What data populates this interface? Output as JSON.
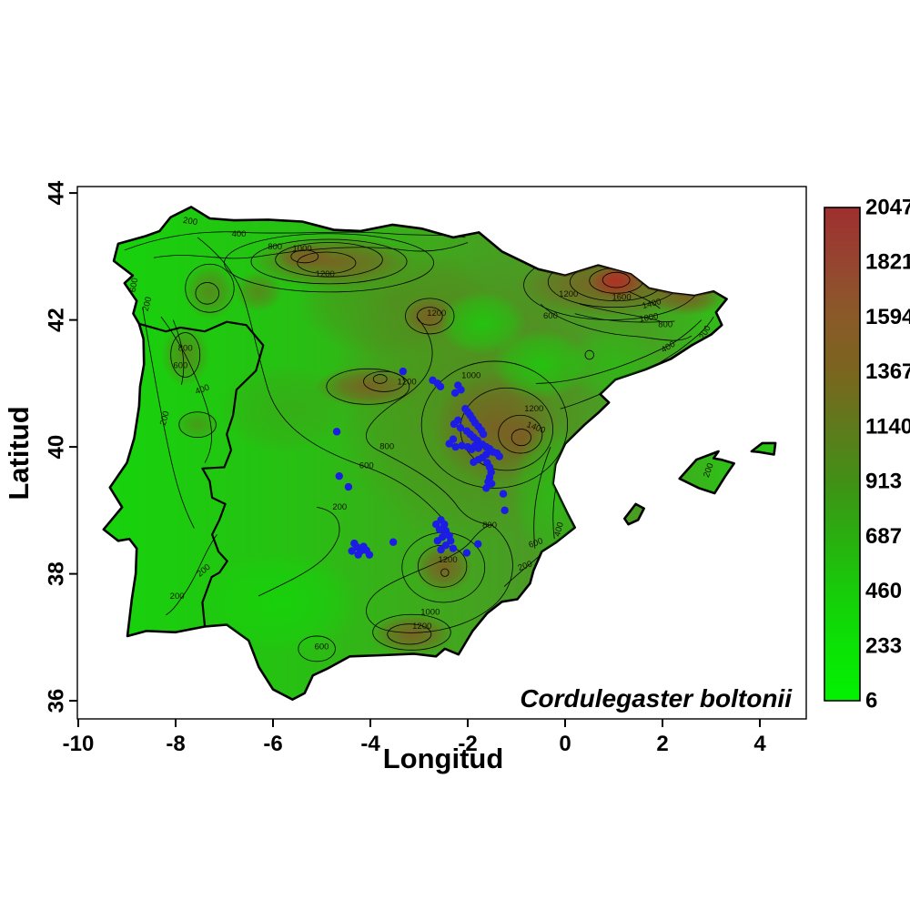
{
  "chart_data": {
    "type": "contour-map-with-points",
    "region": "Iberian Peninsula",
    "species": "Cordulegaster boltonii",
    "xlabel": "Longitud",
    "ylabel": "Latitud",
    "xlim": [
      -10,
      5
    ],
    "ylim": [
      35.7,
      44.1
    ],
    "x_axis": {
      "ticks": [
        -10,
        -8,
        -6,
        -4,
        -2,
        0,
        2,
        4
      ]
    },
    "y_axis": {
      "ticks": [
        36,
        38,
        40,
        42,
        44
      ]
    },
    "colorbar": {
      "values": [
        2047,
        1821,
        1594,
        1367,
        1140,
        913,
        687,
        460,
        233,
        6
      ],
      "gradient_top_to_bottom": [
        "#9e2f2f",
        "#964530",
        "#8a5a28",
        "#7a651f",
        "#5f7a1c",
        "#419016",
        "#2aae10",
        "#17cc09",
        "#0be205",
        "#02f202"
      ]
    },
    "colors": {
      "point": "#1c1ce6",
      "land_low": "#16d30b",
      "land_mid": "#4b9a24",
      "highland_brown": "#7d5c24",
      "peak_red": "#ac3226",
      "coast_line": "#000000"
    },
    "contour_labels": [
      {
        "t": "200",
        "lon": -7.7,
        "lat": 43.55,
        "r": 10
      },
      {
        "t": "400",
        "lon": -6.7,
        "lat": 43.35,
        "r": 0
      },
      {
        "t": "800",
        "lon": -5.96,
        "lat": 43.15,
        "r": 0
      },
      {
        "t": "1000",
        "lon": -5.4,
        "lat": 43.12,
        "r": 0
      },
      {
        "t": "1200",
        "lon": -4.93,
        "lat": 42.72,
        "r": 0
      },
      {
        "t": "600",
        "lon": -8.85,
        "lat": 42.55,
        "r": -80
      },
      {
        "t": "200",
        "lon": -8.58,
        "lat": 42.25,
        "r": -75
      },
      {
        "t": "800",
        "lon": -7.8,
        "lat": 41.55,
        "r": 0
      },
      {
        "t": "600",
        "lon": -7.9,
        "lat": 41.28,
        "r": 0
      },
      {
        "t": "400",
        "lon": -7.45,
        "lat": 40.9,
        "r": -20
      },
      {
        "t": "200",
        "lon": -8.22,
        "lat": 40.45,
        "r": -75
      },
      {
        "t": "1200",
        "lon": -2.64,
        "lat": 42.1,
        "r": 0
      },
      {
        "t": "600",
        "lon": -0.3,
        "lat": 42.06,
        "r": 0
      },
      {
        "t": "1200",
        "lon": 0.07,
        "lat": 42.4,
        "r": 0
      },
      {
        "t": "1600",
        "lon": 1.16,
        "lat": 42.35,
        "r": 0
      },
      {
        "t": "1400",
        "lon": 1.78,
        "lat": 42.25,
        "r": -15
      },
      {
        "t": "1000",
        "lon": 1.72,
        "lat": 42.03,
        "r": -10
      },
      {
        "t": "800",
        "lon": 2.06,
        "lat": 41.92,
        "r": 0
      },
      {
        "t": "400",
        "lon": 2.12,
        "lat": 41.57,
        "r": -30
      },
      {
        "t": "200",
        "lon": 2.88,
        "lat": 41.8,
        "r": -60
      },
      {
        "t": "1200",
        "lon": -3.25,
        "lat": 41.02,
        "r": 0
      },
      {
        "t": "1000",
        "lon": -1.93,
        "lat": 41.12,
        "r": 0
      },
      {
        "t": "800",
        "lon": -3.66,
        "lat": 40.0,
        "r": 0
      },
      {
        "t": "600",
        "lon": -4.08,
        "lat": 39.7,
        "r": 0
      },
      {
        "t": "200",
        "lon": -4.63,
        "lat": 39.05,
        "r": 0
      },
      {
        "t": "1200",
        "lon": -0.64,
        "lat": 40.6,
        "r": 0
      },
      {
        "t": "1400",
        "lon": -0.6,
        "lat": 40.3,
        "r": 20
      },
      {
        "t": "800",
        "lon": -1.55,
        "lat": 38.76,
        "r": 0
      },
      {
        "t": "600",
        "lon": -0.6,
        "lat": 38.48,
        "r": -20
      },
      {
        "t": "400",
        "lon": -0.12,
        "lat": 38.7,
        "r": -75
      },
      {
        "t": "200",
        "lon": -0.82,
        "lat": 38.12,
        "r": -20
      },
      {
        "t": "1200",
        "lon": -2.41,
        "lat": 38.22,
        "r": 0
      },
      {
        "t": "1000",
        "lon": -2.77,
        "lat": 37.39,
        "r": 0
      },
      {
        "t": "1200",
        "lon": -2.94,
        "lat": 37.17,
        "r": 0
      },
      {
        "t": "600",
        "lon": -5.0,
        "lat": 36.85,
        "r": 0
      },
      {
        "t": "200",
        "lon": -7.42,
        "lat": 38.05,
        "r": -40
      },
      {
        "t": "200",
        "lon": -7.97,
        "lat": 37.64,
        "r": 0
      },
      {
        "t": "200",
        "lon": 2.95,
        "lat": 39.63,
        "r": -70
      }
    ],
    "occurrences": [
      [
        -3.33,
        41.19
      ],
      [
        -2.72,
        41.05
      ],
      [
        -2.62,
        41.0
      ],
      [
        -2.56,
        40.95
      ],
      [
        -2.2,
        40.97
      ],
      [
        -2.14,
        40.9
      ],
      [
        -2.26,
        40.85
      ],
      [
        -2.05,
        40.6
      ],
      [
        -2.0,
        40.55
      ],
      [
        -1.95,
        40.5
      ],
      [
        -1.9,
        40.44
      ],
      [
        -1.85,
        40.38
      ],
      [
        -2.2,
        40.42
      ],
      [
        -2.28,
        40.36
      ],
      [
        -2.15,
        40.3
      ],
      [
        -1.78,
        40.32
      ],
      [
        -1.72,
        40.26
      ],
      [
        -1.68,
        40.2
      ],
      [
        -2.02,
        40.25
      ],
      [
        -1.95,
        40.2
      ],
      [
        -1.88,
        40.15
      ],
      [
        -1.8,
        40.1
      ],
      [
        -2.3,
        40.12
      ],
      [
        -2.38,
        40.05
      ],
      [
        -2.25,
        40.0
      ],
      [
        -2.12,
        40.02
      ],
      [
        -2.0,
        40.0
      ],
      [
        -1.92,
        39.96
      ],
      [
        -1.85,
        40.02
      ],
      [
        -1.78,
        39.98
      ],
      [
        -1.7,
        40.04
      ],
      [
        -1.62,
        40.0
      ],
      [
        -1.55,
        39.97
      ],
      [
        -1.48,
        39.92
      ],
      [
        -1.4,
        39.9
      ],
      [
        -1.35,
        39.85
      ],
      [
        -1.62,
        39.88
      ],
      [
        -1.7,
        39.83
      ],
      [
        -1.78,
        39.8
      ],
      [
        -1.88,
        39.76
      ],
      [
        -1.6,
        39.75
      ],
      [
        -1.55,
        39.68
      ],
      [
        -1.52,
        39.6
      ],
      [
        -1.55,
        39.52
      ],
      [
        -1.58,
        39.45
      ],
      [
        -1.62,
        39.35
      ],
      [
        -1.51,
        39.42
      ],
      [
        -1.27,
        39.26
      ],
      [
        -1.24,
        39.0
      ],
      [
        -4.69,
        40.24
      ],
      [
        -4.64,
        39.54
      ],
      [
        -4.45,
        39.37
      ],
      [
        -3.53,
        38.5
      ],
      [
        -4.33,
        38.48
      ],
      [
        -4.27,
        38.42
      ],
      [
        -4.2,
        38.36
      ],
      [
        -4.14,
        38.43
      ],
      [
        -4.08,
        38.37
      ],
      [
        -4.25,
        38.3
      ],
      [
        -4.38,
        38.36
      ],
      [
        -4.02,
        38.3
      ],
      [
        -2.65,
        38.78
      ],
      [
        -2.55,
        38.85
      ],
      [
        -2.48,
        38.78
      ],
      [
        -2.58,
        38.7
      ],
      [
        -2.45,
        38.68
      ],
      [
        -2.38,
        38.6
      ],
      [
        -2.52,
        38.58
      ],
      [
        -2.62,
        38.52
      ],
      [
        -2.35,
        38.52
      ],
      [
        -2.45,
        38.45
      ],
      [
        -2.3,
        38.4
      ],
      [
        -2.55,
        38.38
      ],
      [
        -2.02,
        38.33
      ],
      [
        -1.79,
        38.47
      ]
    ]
  }
}
